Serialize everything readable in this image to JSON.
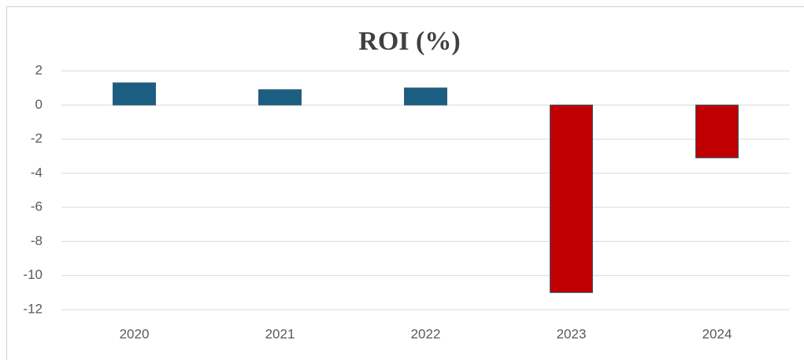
{
  "chart_data": {
    "type": "bar",
    "title": "ROI (%)",
    "categories": [
      "2020",
      "2021",
      "2022",
      "2023",
      "2024"
    ],
    "values": [
      1.3,
      0.9,
      1.0,
      -11.0,
      -3.1
    ],
    "colors": [
      "#1b5e82",
      "#1b5e82",
      "#1b5e82",
      "#c00000",
      "#c00000"
    ],
    "ylim": [
      -12,
      2
    ],
    "yticks": [
      2,
      0,
      -2,
      -4,
      -6,
      -8,
      -10,
      -12
    ],
    "grid": true
  }
}
